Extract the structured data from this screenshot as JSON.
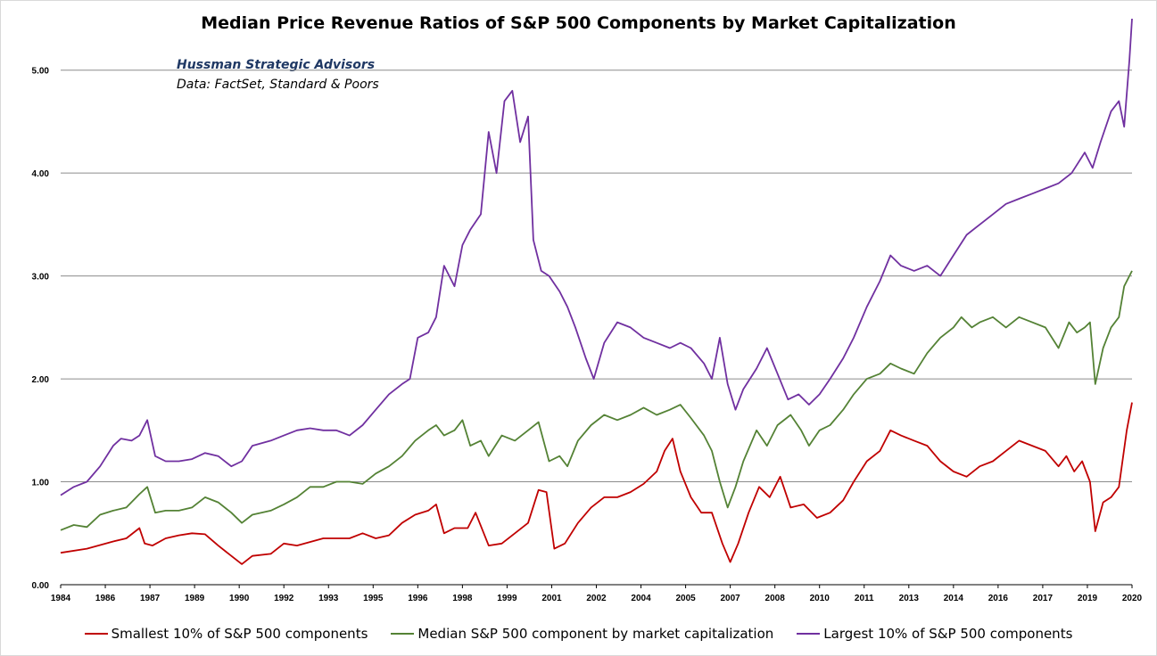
{
  "chart_data": {
    "type": "line",
    "title": "Median Price Revenue Ratios of S&P 500 Components by Market Capitalization",
    "annotation_source": "Hussman Strategic Advisors",
    "annotation_data": "Data: FactSet, Standard & Poors",
    "xlabel": "",
    "ylabel": "",
    "ylim": [
      0,
      5.5
    ],
    "y_ticks": [
      "0.00",
      "1.00",
      "2.00",
      "3.00",
      "4.00",
      "5.00"
    ],
    "x_tick_labels": [
      "1984",
      "1986",
      "1987",
      "1989",
      "1990",
      "1992",
      "1993",
      "1995",
      "1996",
      "1998",
      "1999",
      "2001",
      "2002",
      "2004",
      "2005",
      "2007",
      "2008",
      "2010",
      "2011",
      "2013",
      "2014",
      "2016",
      "2017",
      "2019",
      "2020"
    ],
    "grid": "horizontal",
    "legend_position": "bottom",
    "series": [
      {
        "name": "Smallest 10% of S&P 500 components",
        "color": "#c00000",
        "points": [
          [
            1984.0,
            0.31
          ],
          [
            1985.0,
            0.35
          ],
          [
            1986.0,
            0.42
          ],
          [
            1986.5,
            0.45
          ],
          [
            1987.0,
            0.55
          ],
          [
            1987.2,
            0.4
          ],
          [
            1987.5,
            0.38
          ],
          [
            1988.0,
            0.45
          ],
          [
            1988.5,
            0.48
          ],
          [
            1989.0,
            0.5
          ],
          [
            1989.5,
            0.49
          ],
          [
            1990.0,
            0.38
          ],
          [
            1990.5,
            0.28
          ],
          [
            1990.9,
            0.2
          ],
          [
            1991.3,
            0.28
          ],
          [
            1992.0,
            0.3
          ],
          [
            1992.5,
            0.4
          ],
          [
            1993.0,
            0.38
          ],
          [
            1994.0,
            0.45
          ],
          [
            1995.0,
            0.45
          ],
          [
            1995.5,
            0.5
          ],
          [
            1996.0,
            0.45
          ],
          [
            1996.5,
            0.48
          ],
          [
            1997.0,
            0.6
          ],
          [
            1997.5,
            0.68
          ],
          [
            1998.0,
            0.72
          ],
          [
            1998.3,
            0.78
          ],
          [
            1998.6,
            0.5
          ],
          [
            1999.0,
            0.55
          ],
          [
            1999.5,
            0.55
          ],
          [
            1999.8,
            0.7
          ],
          [
            2000.3,
            0.38
          ],
          [
            2000.8,
            0.4
          ],
          [
            2001.3,
            0.5
          ],
          [
            2001.8,
            0.6
          ],
          [
            2002.2,
            0.92
          ],
          [
            2002.5,
            0.9
          ],
          [
            2002.8,
            0.35
          ],
          [
            2003.2,
            0.4
          ],
          [
            2003.7,
            0.6
          ],
          [
            2004.2,
            0.75
          ],
          [
            2004.7,
            0.85
          ],
          [
            2005.2,
            0.85
          ],
          [
            2005.7,
            0.9
          ],
          [
            2006.2,
            0.98
          ],
          [
            2006.7,
            1.1
          ],
          [
            2007.0,
            1.3
          ],
          [
            2007.3,
            1.42
          ],
          [
            2007.6,
            1.1
          ],
          [
            2008.0,
            0.85
          ],
          [
            2008.4,
            0.7
          ],
          [
            2008.8,
            0.7
          ],
          [
            2009.2,
            0.4
          ],
          [
            2009.5,
            0.22
          ],
          [
            2009.8,
            0.4
          ],
          [
            2010.2,
            0.7
          ],
          [
            2010.6,
            0.95
          ],
          [
            2011.0,
            0.85
          ],
          [
            2011.4,
            1.05
          ],
          [
            2011.8,
            0.75
          ],
          [
            2012.3,
            0.78
          ],
          [
            2012.8,
            0.65
          ],
          [
            2013.3,
            0.7
          ],
          [
            2013.8,
            0.82
          ],
          [
            2014.2,
            1.0
          ],
          [
            2014.7,
            1.2
          ],
          [
            2015.2,
            1.3
          ],
          [
            2015.6,
            1.5
          ],
          [
            2016.0,
            1.45
          ],
          [
            2016.5,
            1.4
          ],
          [
            2017.0,
            1.35
          ],
          [
            2017.5,
            1.2
          ],
          [
            2018.0,
            1.1
          ],
          [
            2018.5,
            1.05
          ],
          [
            2019.0,
            1.15
          ],
          [
            2019.5,
            1.2
          ],
          [
            2020.0,
            1.3
          ],
          [
            2020.5,
            1.4
          ],
          [
            2021.0,
            1.35
          ],
          [
            2021.5,
            1.3
          ],
          [
            2022.0,
            1.15
          ],
          [
            2022.3,
            1.25
          ],
          [
            2022.6,
            1.1
          ],
          [
            2022.9,
            1.2
          ],
          [
            2023.2,
            1.0
          ],
          [
            2023.4,
            0.52
          ],
          [
            2023.7,
            0.8
          ],
          [
            2024.0,
            0.85
          ],
          [
            2024.3,
            0.95
          ],
          [
            2024.6,
            1.5
          ],
          [
            2024.8,
            1.77
          ]
        ]
      },
      {
        "name": "Median S&P 500 component by market capitalization",
        "color": "#548235",
        "points": [
          [
            1984.0,
            0.53
          ],
          [
            1984.5,
            0.58
          ],
          [
            1985.0,
            0.56
          ],
          [
            1985.5,
            0.68
          ],
          [
            1986.0,
            0.72
          ],
          [
            1986.5,
            0.75
          ],
          [
            1987.0,
            0.88
          ],
          [
            1987.3,
            0.95
          ],
          [
            1987.6,
            0.7
          ],
          [
            1988.0,
            0.72
          ],
          [
            1988.5,
            0.72
          ],
          [
            1989.0,
            0.75
          ],
          [
            1989.5,
            0.85
          ],
          [
            1990.0,
            0.8
          ],
          [
            1990.5,
            0.7
          ],
          [
            1990.9,
            0.6
          ],
          [
            1991.3,
            0.68
          ],
          [
            1992.0,
            0.72
          ],
          [
            1992.5,
            0.78
          ],
          [
            1993.0,
            0.85
          ],
          [
            1993.5,
            0.95
          ],
          [
            1994.0,
            0.95
          ],
          [
            1994.5,
            1.0
          ],
          [
            1995.0,
            1.0
          ],
          [
            1995.5,
            0.98
          ],
          [
            1996.0,
            1.08
          ],
          [
            1996.5,
            1.15
          ],
          [
            1997.0,
            1.25
          ],
          [
            1997.5,
            1.4
          ],
          [
            1998.0,
            1.5
          ],
          [
            1998.3,
            1.55
          ],
          [
            1998.6,
            1.45
          ],
          [
            1999.0,
            1.5
          ],
          [
            1999.3,
            1.6
          ],
          [
            1999.6,
            1.35
          ],
          [
            2000.0,
            1.4
          ],
          [
            2000.3,
            1.25
          ],
          [
            2000.8,
            1.45
          ],
          [
            2001.3,
            1.4
          ],
          [
            2001.8,
            1.5
          ],
          [
            2002.2,
            1.58
          ],
          [
            2002.6,
            1.2
          ],
          [
            2003.0,
            1.25
          ],
          [
            2003.3,
            1.15
          ],
          [
            2003.7,
            1.4
          ],
          [
            2004.2,
            1.55
          ],
          [
            2004.7,
            1.65
          ],
          [
            2005.2,
            1.6
          ],
          [
            2005.7,
            1.65
          ],
          [
            2006.2,
            1.72
          ],
          [
            2006.7,
            1.65
          ],
          [
            2007.2,
            1.7
          ],
          [
            2007.6,
            1.75
          ],
          [
            2008.0,
            1.62
          ],
          [
            2008.5,
            1.45
          ],
          [
            2008.8,
            1.3
          ],
          [
            2009.1,
            1.0
          ],
          [
            2009.4,
            0.75
          ],
          [
            2009.7,
            0.95
          ],
          [
            2010.0,
            1.2
          ],
          [
            2010.5,
            1.5
          ],
          [
            2010.9,
            1.35
          ],
          [
            2011.3,
            1.55
          ],
          [
            2011.8,
            1.65
          ],
          [
            2012.2,
            1.5
          ],
          [
            2012.5,
            1.35
          ],
          [
            2012.9,
            1.5
          ],
          [
            2013.3,
            1.55
          ],
          [
            2013.8,
            1.7
          ],
          [
            2014.2,
            1.85
          ],
          [
            2014.7,
            2.0
          ],
          [
            2015.2,
            2.05
          ],
          [
            2015.6,
            2.15
          ],
          [
            2016.0,
            2.1
          ],
          [
            2016.5,
            2.05
          ],
          [
            2017.0,
            2.25
          ],
          [
            2017.5,
            2.4
          ],
          [
            2018.0,
            2.5
          ],
          [
            2018.3,
            2.6
          ],
          [
            2018.7,
            2.5
          ],
          [
            2019.0,
            2.55
          ],
          [
            2019.5,
            2.6
          ],
          [
            2020.0,
            2.5
          ],
          [
            2020.5,
            2.6
          ],
          [
            2021.0,
            2.55
          ],
          [
            2021.5,
            2.5
          ],
          [
            2022.0,
            2.3
          ],
          [
            2022.4,
            2.55
          ],
          [
            2022.7,
            2.45
          ],
          [
            2023.0,
            2.5
          ],
          [
            2023.2,
            2.55
          ],
          [
            2023.4,
            1.95
          ],
          [
            2023.7,
            2.3
          ],
          [
            2024.0,
            2.5
          ],
          [
            2024.3,
            2.6
          ],
          [
            2024.5,
            2.9
          ],
          [
            2024.8,
            3.05
          ]
        ]
      },
      {
        "name": "Largest 10% of S&P 500 components",
        "color": "#7030a0",
        "points": [
          [
            1984.0,
            0.87
          ],
          [
            1984.5,
            0.95
          ],
          [
            1985.0,
            1.0
          ],
          [
            1985.5,
            1.15
          ],
          [
            1986.0,
            1.35
          ],
          [
            1986.3,
            1.42
          ],
          [
            1986.7,
            1.4
          ],
          [
            1987.0,
            1.45
          ],
          [
            1987.3,
            1.6
          ],
          [
            1987.6,
            1.25
          ],
          [
            1988.0,
            1.2
          ],
          [
            1988.5,
            1.2
          ],
          [
            1989.0,
            1.22
          ],
          [
            1989.5,
            1.28
          ],
          [
            1990.0,
            1.25
          ],
          [
            1990.5,
            1.15
          ],
          [
            1990.9,
            1.2
          ],
          [
            1991.3,
            1.35
          ],
          [
            1992.0,
            1.4
          ],
          [
            1992.5,
            1.45
          ],
          [
            1993.0,
            1.5
          ],
          [
            1993.5,
            1.52
          ],
          [
            1994.0,
            1.5
          ],
          [
            1994.5,
            1.5
          ],
          [
            1995.0,
            1.45
          ],
          [
            1995.5,
            1.55
          ],
          [
            1996.0,
            1.7
          ],
          [
            1996.5,
            1.85
          ],
          [
            1997.0,
            1.95
          ],
          [
            1997.3,
            2.0
          ],
          [
            1997.6,
            2.4
          ],
          [
            1998.0,
            2.45
          ],
          [
            1998.3,
            2.6
          ],
          [
            1998.6,
            3.1
          ],
          [
            1999.0,
            2.9
          ],
          [
            1999.3,
            3.3
          ],
          [
            1999.6,
            3.45
          ],
          [
            2000.0,
            3.6
          ],
          [
            2000.3,
            4.4
          ],
          [
            2000.6,
            4.0
          ],
          [
            2000.9,
            4.7
          ],
          [
            2001.2,
            4.8
          ],
          [
            2001.5,
            4.3
          ],
          [
            2001.8,
            4.55
          ],
          [
            2002.0,
            3.35
          ],
          [
            2002.3,
            3.05
          ],
          [
            2002.6,
            3.0
          ],
          [
            2003.0,
            2.85
          ],
          [
            2003.3,
            2.7
          ],
          [
            2003.6,
            2.5
          ],
          [
            2004.0,
            2.2
          ],
          [
            2004.3,
            2.0
          ],
          [
            2004.7,
            2.35
          ],
          [
            2005.2,
            2.55
          ],
          [
            2005.7,
            2.5
          ],
          [
            2006.2,
            2.4
          ],
          [
            2006.7,
            2.35
          ],
          [
            2007.2,
            2.3
          ],
          [
            2007.6,
            2.35
          ],
          [
            2008.0,
            2.3
          ],
          [
            2008.5,
            2.15
          ],
          [
            2008.8,
            2.0
          ],
          [
            2009.1,
            2.4
          ],
          [
            2009.4,
            1.95
          ],
          [
            2009.7,
            1.7
          ],
          [
            2010.0,
            1.9
          ],
          [
            2010.5,
            2.1
          ],
          [
            2010.9,
            2.3
          ],
          [
            2011.3,
            2.05
          ],
          [
            2011.7,
            1.8
          ],
          [
            2012.1,
            1.85
          ],
          [
            2012.5,
            1.75
          ],
          [
            2012.9,
            1.85
          ],
          [
            2013.3,
            2.0
          ],
          [
            2013.8,
            2.2
          ],
          [
            2014.2,
            2.4
          ],
          [
            2014.7,
            2.7
          ],
          [
            2015.2,
            2.95
          ],
          [
            2015.6,
            3.2
          ],
          [
            2016.0,
            3.1
          ],
          [
            2016.5,
            3.05
          ],
          [
            2017.0,
            3.1
          ],
          [
            2017.5,
            3.0
          ],
          [
            2018.0,
            3.2
          ],
          [
            2018.5,
            3.4
          ],
          [
            2019.0,
            3.5
          ],
          [
            2019.5,
            3.6
          ],
          [
            2020.0,
            3.7
          ],
          [
            2020.5,
            3.75
          ],
          [
            2021.0,
            3.8
          ],
          [
            2021.5,
            3.85
          ],
          [
            2022.0,
            3.9
          ],
          [
            2022.5,
            4.0
          ],
          [
            2023.0,
            4.2
          ],
          [
            2023.3,
            4.05
          ],
          [
            2023.6,
            4.3
          ],
          [
            2024.0,
            4.6
          ],
          [
            2024.3,
            4.7
          ],
          [
            2024.5,
            4.45
          ],
          [
            2024.7,
            5.1
          ],
          [
            2024.8,
            5.5
          ]
        ]
      }
    ]
  }
}
